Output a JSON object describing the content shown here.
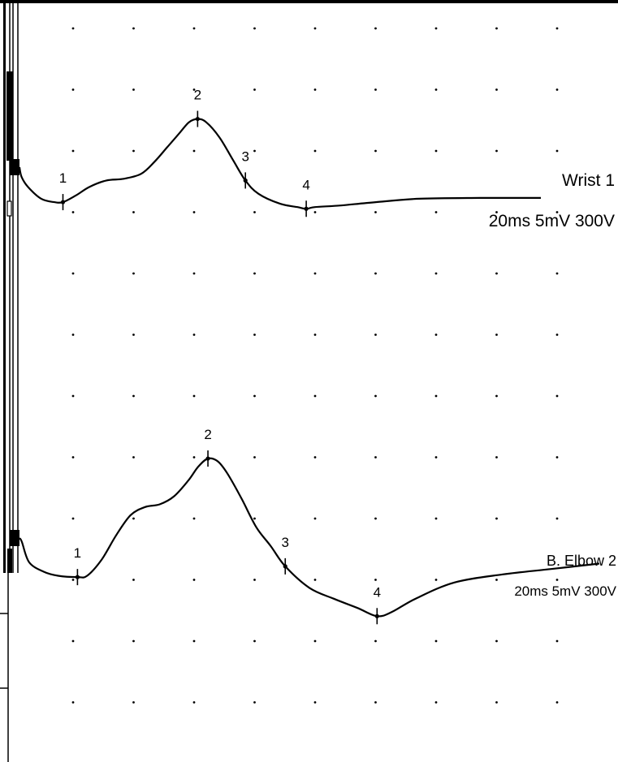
{
  "chart_data": {
    "type": "line",
    "grid": "dotted",
    "traces": [
      {
        "name": "Wrist 1",
        "settings": "20ms 5mV 300V",
        "baseline": 0,
        "points": [
          [
            0,
            0
          ],
          [
            0.5,
            -0.6
          ],
          [
            2,
            -1.2
          ],
          [
            5,
            -1.9
          ],
          [
            8,
            -2.1
          ],
          [
            10,
            -2.1
          ],
          [
            13,
            -1.7
          ],
          [
            16,
            -1.2
          ],
          [
            20,
            -0.8
          ],
          [
            24,
            -0.7
          ],
          [
            28,
            -0.4
          ],
          [
            31,
            0.3
          ],
          [
            34,
            1.2
          ],
          [
            37,
            2.1
          ],
          [
            39,
            2.7
          ],
          [
            41,
            2.9
          ],
          [
            43,
            2.7
          ],
          [
            46,
            1.8
          ],
          [
            49,
            0.5
          ],
          [
            52,
            -0.8
          ],
          [
            55,
            -1.6
          ],
          [
            60,
            -2.2
          ],
          [
            64,
            -2.4
          ],
          [
            66,
            -2.5
          ],
          [
            68,
            -2.4
          ],
          [
            74,
            -2.3
          ],
          [
            82,
            -2.1
          ],
          [
            92,
            -1.9
          ],
          [
            106,
            -1.85
          ],
          [
            120,
            -1.85
          ]
        ],
        "markers": [
          {
            "label": "1",
            "t": 10
          },
          {
            "label": "2",
            "t": 41
          },
          {
            "label": "3",
            "t": 52
          },
          {
            "label": "4",
            "t": 66
          }
        ]
      },
      {
        "name": "B. Elbow 2",
        "settings": "20ms 5mV 300V",
        "baseline": 0,
        "points": [
          [
            0,
            0
          ],
          [
            0.5,
            -0.3
          ],
          [
            2,
            -1.8
          ],
          [
            5,
            -2.5
          ],
          [
            8,
            -2.8
          ],
          [
            12,
            -2.9
          ],
          [
            14,
            -2.8
          ],
          [
            17,
            -1.6
          ],
          [
            20,
            0.2
          ],
          [
            23,
            1.7
          ],
          [
            26,
            2.3
          ],
          [
            29,
            2.5
          ],
          [
            32,
            3.1
          ],
          [
            35,
            4.3
          ],
          [
            37,
            5.3
          ],
          [
            39,
            5.9
          ],
          [
            41,
            5.7
          ],
          [
            43,
            4.8
          ],
          [
            46,
            2.9
          ],
          [
            49,
            0.8
          ],
          [
            52,
            -0.6
          ],
          [
            55,
            -2.1
          ],
          [
            60,
            -3.7
          ],
          [
            65,
            -4.5
          ],
          [
            70,
            -5.2
          ],
          [
            74,
            -5.8
          ],
          [
            77,
            -5.5
          ],
          [
            82,
            -4.5
          ],
          [
            90,
            -3.3
          ],
          [
            100,
            -2.7
          ],
          [
            110,
            -2.3
          ],
          [
            120,
            -1.9
          ]
        ],
        "markers": [
          {
            "label": "1",
            "t": 12
          },
          {
            "label": "2",
            "t": 39
          },
          {
            "label": "3",
            "t": 55
          },
          {
            "label": "4",
            "t": 74
          }
        ]
      }
    ]
  }
}
